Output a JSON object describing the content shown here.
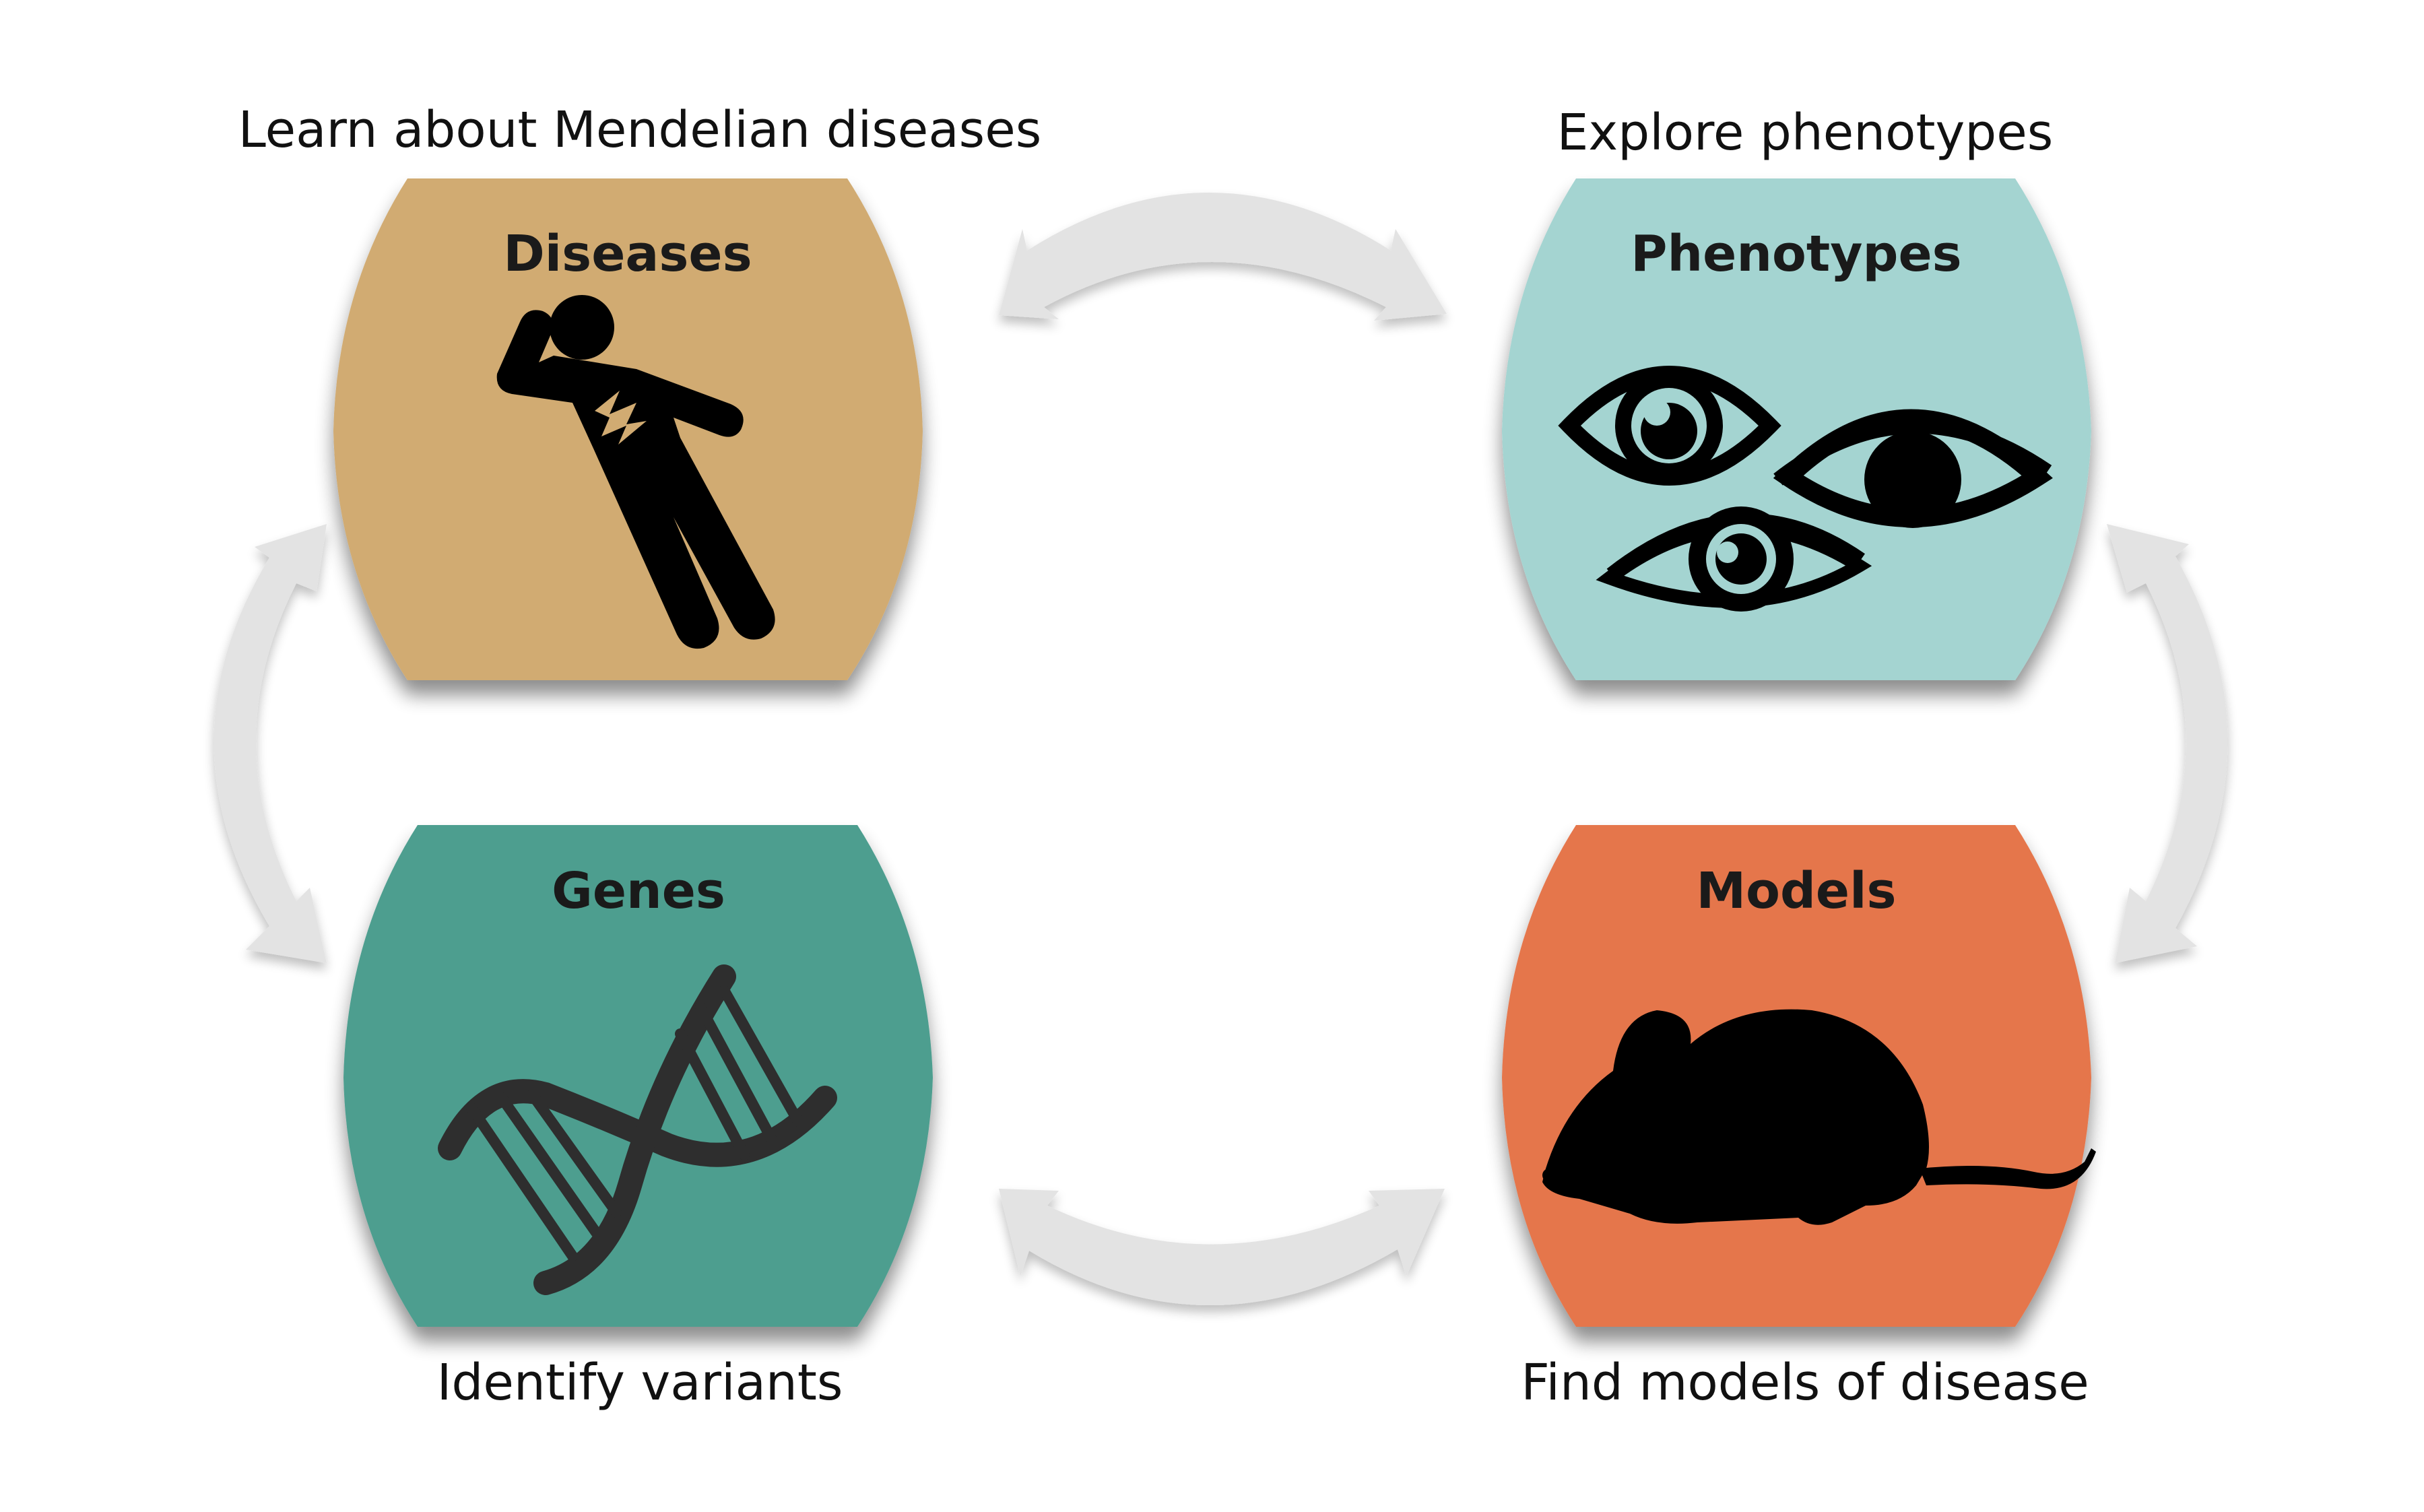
{
  "nodes": {
    "diseases": {
      "title": "Diseases",
      "caption": "Learn about Mendelian diseases",
      "color": "#d1ab72",
      "icon": "falling-person-icon"
    },
    "phenotypes": {
      "title": "Phenotypes",
      "caption": "Explore phenotypes",
      "color": "#a4d4d1",
      "icon": "eyes-icon"
    },
    "genes": {
      "title": "Genes",
      "caption": "Identify variants",
      "color": "#4d9e8f",
      "icon": "dna-icon"
    },
    "models": {
      "title": "Models",
      "caption": "Find models of disease",
      "color": "#e5764b",
      "icon": "mouse-icon"
    }
  },
  "colors": {
    "arrow": "#e3e3e3",
    "icon": "#000000",
    "dna_icon": "#2e2e2e"
  }
}
